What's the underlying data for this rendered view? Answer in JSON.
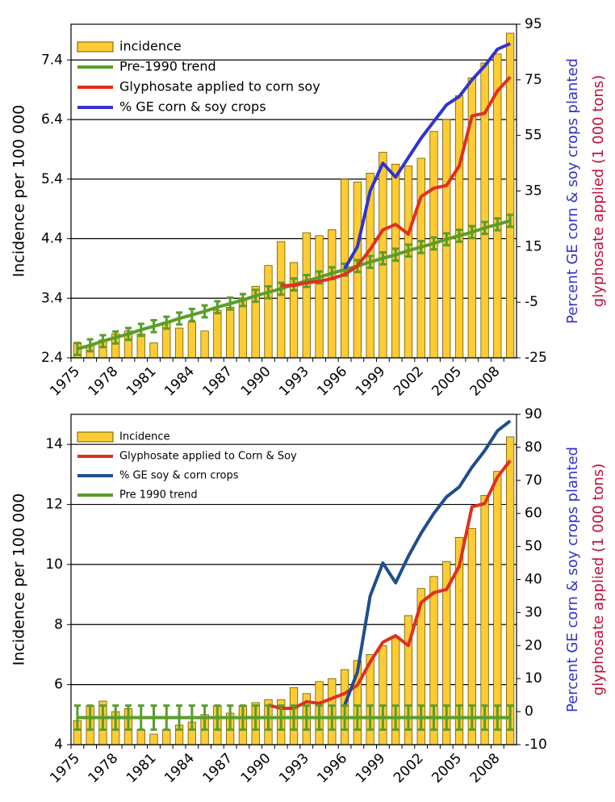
{
  "chart_data": [
    {
      "type": "bar",
      "categories": [
        "1975",
        null,
        null,
        "1978",
        null,
        null,
        "1981",
        null,
        null,
        "1984",
        null,
        null,
        "1987",
        null,
        null,
        "1990",
        null,
        null,
        "1993",
        null,
        null,
        "1996",
        null,
        null,
        "1999",
        null,
        null,
        "2002",
        null,
        null,
        "2005",
        null,
        null,
        "2008",
        null
      ],
      "y_label": "Incidence per 100 000",
      "y2_label": [
        "Percent GE corn & soy crops planted",
        "glyphosate applied (1 000 tons)"
      ],
      "y2_label_colors": [
        "#3333cc",
        "#c0103a"
      ],
      "ylim": [
        2.4,
        8.0
      ],
      "yticks": [
        2.4,
        3.4,
        4.4,
        5.4,
        6.4,
        7.4
      ],
      "y2lim": [
        -25,
        95
      ],
      "y2ticks": [
        -25,
        -5,
        15,
        35,
        55,
        75,
        95
      ],
      "grid": true,
      "legend": "upper left",
      "series": [
        {
          "name": "incidence",
          "type": "bar",
          "color": "#ffcc33",
          "values": [
            2.65,
            2.6,
            2.7,
            2.8,
            2.85,
            2.8,
            2.65,
            3.0,
            2.9,
            3.0,
            2.85,
            3.2,
            3.25,
            3.4,
            3.6,
            3.95,
            4.35,
            4.0,
            4.5,
            4.45,
            4.55,
            5.4,
            5.35,
            5.5,
            5.85,
            5.65,
            5.62,
            5.75,
            6.2,
            6.4,
            6.8,
            7.1,
            7.35,
            7.5,
            7.85
          ]
        },
        {
          "name": "Pre-1990 trend",
          "type": "line",
          "color": "#5a9e2a",
          "values": [
            2.55,
            2.61,
            2.68,
            2.74,
            2.8,
            2.87,
            2.93,
            2.99,
            3.06,
            3.12,
            3.18,
            3.25,
            3.31,
            3.37,
            3.44,
            3.5,
            3.56,
            3.63,
            3.69,
            3.75,
            3.82,
            3.88,
            3.94,
            4.01,
            4.07,
            4.13,
            4.2,
            4.26,
            4.32,
            4.39,
            4.45,
            4.51,
            4.58,
            4.64,
            4.7
          ],
          "errors": [
            0.1,
            0.1,
            0.1,
            0.1,
            0.1,
            0.1,
            0.1,
            0.1,
            0.1,
            0.1,
            0.1,
            0.1,
            0.1,
            0.1,
            0.1,
            0.1,
            0.1,
            0.1,
            0.1,
            0.1,
            0.1,
            0.1,
            0.1,
            0.1,
            0.1,
            0.1,
            0.1,
            0.1,
            0.1,
            0.1,
            0.1,
            0.1,
            0.1,
            0.1,
            0.1
          ]
        },
        {
          "name": "Glyphosate applied to corn soy",
          "type": "line",
          "axis": "y2",
          "color": "#e0301e",
          "values": [
            null,
            null,
            null,
            null,
            null,
            null,
            null,
            null,
            null,
            null,
            null,
            null,
            null,
            null,
            null,
            null,
            1,
            1,
            2,
            2.5,
            3.5,
            5,
            8,
            14,
            21,
            23,
            19.5,
            33,
            36,
            37,
            44,
            62,
            63,
            71,
            76
          ]
        },
        {
          "name": "% GE corn & soy crops",
          "type": "line",
          "axis": "y2",
          "color": "#3333cc",
          "values": [
            null,
            null,
            null,
            null,
            null,
            null,
            null,
            null,
            null,
            null,
            null,
            null,
            null,
            null,
            null,
            null,
            null,
            null,
            null,
            null,
            null,
            7,
            15,
            35,
            45,
            40,
            47,
            54,
            60,
            66,
            69,
            75,
            80,
            86,
            88
          ]
        }
      ]
    },
    {
      "type": "bar",
      "categories": [
        "1975",
        null,
        null,
        "1978",
        null,
        null,
        "1981",
        null,
        null,
        "1984",
        null,
        null,
        "1987",
        null,
        null,
        "1990",
        null,
        null,
        "1993",
        null,
        null,
        "1996",
        null,
        null,
        "1999",
        null,
        null,
        "2002",
        null,
        null,
        "2005",
        null,
        null,
        "2008",
        null
      ],
      "y_label": "Incidence per 100 000",
      "y2_label": [
        "Percent GE corn & soy crops planted",
        "glyphosate applied (1 000 tons)"
      ],
      "y2_label_colors": [
        "#3333cc",
        "#c0103a"
      ],
      "ylim": [
        4,
        15
      ],
      "yticks": [
        4,
        6,
        8,
        10,
        12,
        14
      ],
      "y2lim": [
        -10,
        90
      ],
      "y2ticks": [
        -10,
        0,
        10,
        20,
        30,
        40,
        50,
        60,
        70,
        80,
        90
      ],
      "grid": true,
      "legend": "upper left",
      "series": [
        {
          "name": "Incidence",
          "type": "bar",
          "color": "#ffcc33",
          "values": [
            4.8,
            5.3,
            5.45,
            5.1,
            5.2,
            4.5,
            4.35,
            4.5,
            4.65,
            4.75,
            5.0,
            5.3,
            5.05,
            5.3,
            5.4,
            5.5,
            5.5,
            5.9,
            5.7,
            6.1,
            6.2,
            6.5,
            6.8,
            7.0,
            7.3,
            7.6,
            8.3,
            9.2,
            9.6,
            10.1,
            10.9,
            11.2,
            12.3,
            13.1,
            14.25
          ]
        },
        {
          "name": "Glyphosate applied to Corn & Soy",
          "type": "line",
          "axis": "y2",
          "color": "#e0301e",
          "values": [
            null,
            null,
            null,
            null,
            null,
            null,
            null,
            null,
            null,
            null,
            null,
            null,
            null,
            null,
            null,
            2,
            1,
            1,
            3,
            2.5,
            4,
            5.5,
            8,
            15,
            21,
            23,
            20,
            33,
            36,
            37,
            44,
            62,
            63,
            71,
            76
          ]
        },
        {
          "name": "% GE soy & corn crops",
          "type": "line",
          "axis": "y2",
          "color": "#1f4e8c",
          "values": [
            null,
            null,
            null,
            null,
            null,
            null,
            null,
            null,
            null,
            null,
            null,
            null,
            null,
            null,
            null,
            null,
            null,
            null,
            null,
            null,
            null,
            2,
            12,
            35,
            45,
            39,
            47,
            54,
            60,
            65,
            68,
            74,
            79,
            85,
            88
          ]
        },
        {
          "name": "Pre 1990 trend",
          "type": "line",
          "color": "#5a9e2a",
          "values": [
            4.9,
            4.9,
            4.9,
            4.9,
            4.9,
            4.9,
            4.9,
            4.9,
            4.9,
            4.9,
            4.9,
            4.9,
            4.9,
            4.9,
            4.9,
            4.9,
            4.9,
            4.9,
            4.9,
            4.9,
            4.9,
            4.9,
            4.9,
            4.9,
            4.9,
            4.9,
            4.9,
            4.9,
            4.9,
            4.9,
            4.9,
            4.9,
            4.9,
            4.9,
            4.9
          ],
          "errors": [
            0.4,
            0.4,
            0.4,
            0.4,
            0.4,
            0.4,
            0.4,
            0.4,
            0.4,
            0.4,
            0.4,
            0.4,
            0.4,
            0.4,
            0.4,
            0.4,
            0.4,
            0.4,
            0.4,
            0.4,
            0.4,
            0.4,
            0.4,
            0.4,
            0.4,
            0.4,
            0.4,
            0.4,
            0.4,
            0.4,
            0.4,
            0.4,
            0.4,
            0.4,
            0.4
          ]
        }
      ]
    }
  ]
}
